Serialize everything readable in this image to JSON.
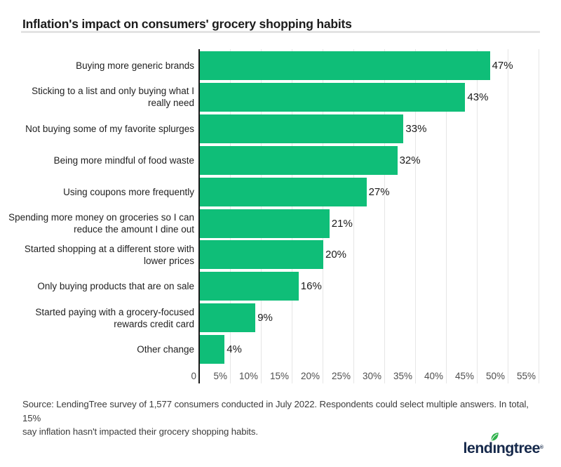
{
  "header": {
    "title": "Inflation's impact on consumers' grocery shopping habits"
  },
  "chart_data": {
    "type": "bar",
    "orientation": "horizontal",
    "title": "Inflation's impact on consumers' grocery shopping habits",
    "categories": [
      "Buying more generic brands",
      "Sticking to a list and only buying what I\nreally need",
      "Not buying some of my favorite splurges",
      "Being more mindful of food waste",
      "Using coupons more frequently",
      "Spending more money on groceries so I can\nreduce the amount I dine out",
      "Started shopping at a different store with\nlower prices",
      "Only buying products that are on sale",
      "Started paying with a grocery-focused\nrewards credit card",
      "Other change"
    ],
    "values": [
      47,
      43,
      33,
      32,
      27,
      21,
      20,
      16,
      9,
      4
    ],
    "value_labels": [
      "47%",
      "43%",
      "33%",
      "32%",
      "27%",
      "21%",
      "20%",
      "16%",
      "9%",
      "4%"
    ],
    "x_tick_values": [
      0,
      5,
      10,
      15,
      20,
      25,
      30,
      35,
      40,
      45,
      50,
      55
    ],
    "x_tick_labels": [
      "0",
      "5%",
      "10%",
      "15%",
      "20%",
      "25%",
      "30%",
      "35%",
      "40%",
      "45%",
      "50%",
      "55%"
    ],
    "xlim": [
      0,
      55
    ],
    "grid": true,
    "legend": "none",
    "bar_color": "#0fbe78",
    "axis_color": "#1a1a1a",
    "gridline_color": "#e6e6e6"
  },
  "footer": {
    "source": "Source: LendingTree survey of 1,577 consumers conducted in July 2022. Respondents could select multiple answers. In total, 15%\nsay inflation hasn't impacted their grocery shopping habits.",
    "logo": {
      "text_pre": "lend",
      "text_i": "ı",
      "text_post": "ngtree",
      "trademark": "®",
      "navy": "#16294b",
      "leaf_green": "#2eb24b"
    }
  }
}
